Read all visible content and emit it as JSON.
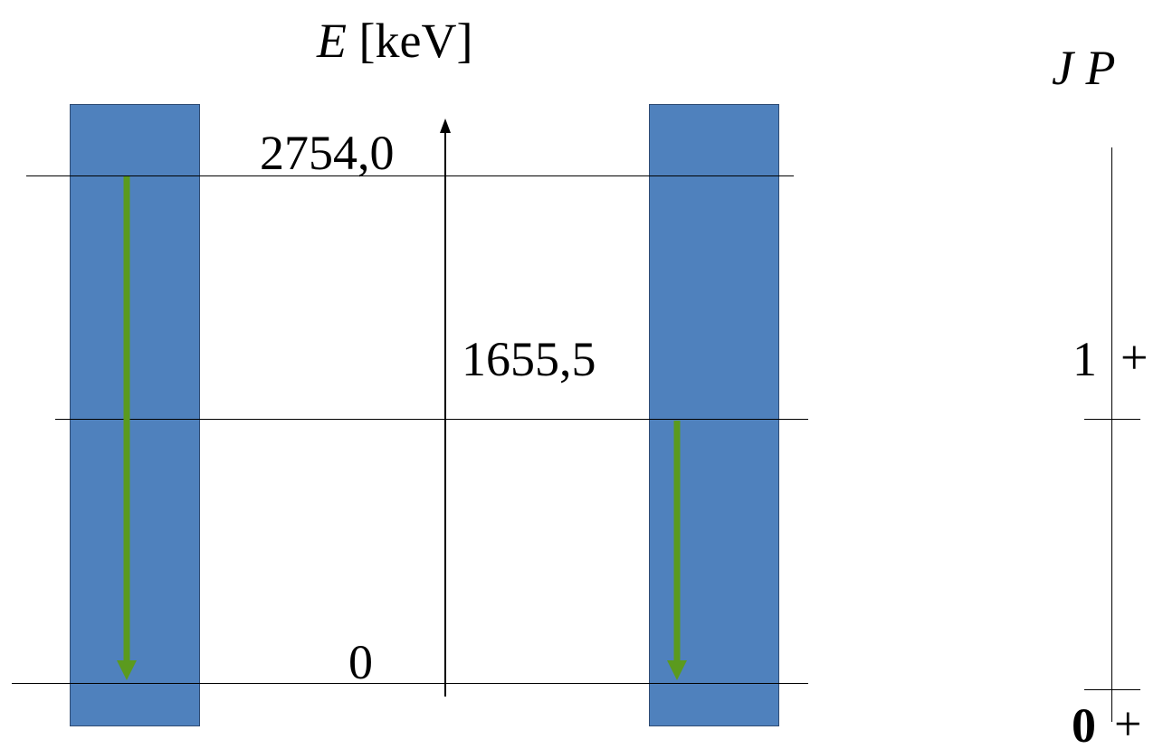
{
  "axis": {
    "symbol": "E",
    "unit": "[keV]"
  },
  "levels": [
    {
      "energy_label": "2754,0",
      "J": "",
      "P": ""
    },
    {
      "energy_label": "1655,5",
      "J": "1",
      "P": "+"
    },
    {
      "energy_label": "0",
      "J": "0",
      "P": "+"
    }
  ],
  "spin_parity_header": {
    "J": "J",
    "P": "P"
  },
  "colors": {
    "bar_fill": "#4f81bd",
    "bar_border": "#2f4b73",
    "transition_arrow": "#5b9a1e",
    "line": "#000000"
  }
}
